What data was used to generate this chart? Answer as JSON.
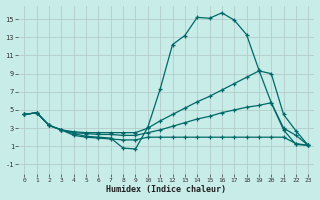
{
  "xlabel": "Humidex (Indice chaleur)",
  "background_color": "#c8ece8",
  "grid_color": "#b0c8c4",
  "line_color": "#006868",
  "xlim": [
    -0.5,
    23.5
  ],
  "ylim": [
    -2.0,
    16.5
  ],
  "xticks": [
    0,
    1,
    2,
    3,
    4,
    5,
    6,
    7,
    8,
    9,
    10,
    11,
    12,
    13,
    14,
    15,
    16,
    17,
    18,
    19,
    20,
    21,
    22,
    23
  ],
  "yticks": [
    -1,
    1,
    3,
    5,
    7,
    9,
    11,
    13,
    15
  ],
  "series1": [
    [
      0,
      4.5
    ],
    [
      1,
      4.7
    ],
    [
      2,
      3.3
    ],
    [
      3,
      2.8
    ],
    [
      4,
      2.4
    ],
    [
      5,
      2.1
    ],
    [
      6,
      2.0
    ],
    [
      7,
      1.9
    ],
    [
      8,
      0.8
    ],
    [
      9,
      0.7
    ],
    [
      10,
      3.1
    ],
    [
      11,
      7.3
    ],
    [
      12,
      12.2
    ],
    [
      13,
      13.2
    ],
    [
      14,
      15.2
    ],
    [
      15,
      15.1
    ],
    [
      16,
      15.7
    ],
    [
      17,
      14.9
    ],
    [
      18,
      13.3
    ],
    [
      19,
      9.4
    ],
    [
      20,
      5.8
    ],
    [
      21,
      2.8
    ],
    [
      22,
      1.2
    ],
    [
      23,
      1.1
    ]
  ],
  "series2": [
    [
      0,
      4.5
    ],
    [
      1,
      4.7
    ],
    [
      2,
      3.3
    ],
    [
      3,
      2.8
    ],
    [
      4,
      2.6
    ],
    [
      5,
      2.5
    ],
    [
      6,
      2.5
    ],
    [
      7,
      2.5
    ],
    [
      8,
      2.5
    ],
    [
      9,
      2.5
    ],
    [
      10,
      3.0
    ],
    [
      11,
      3.8
    ],
    [
      12,
      4.5
    ],
    [
      13,
      5.2
    ],
    [
      14,
      5.9
    ],
    [
      15,
      6.5
    ],
    [
      16,
      7.2
    ],
    [
      17,
      7.9
    ],
    [
      18,
      8.6
    ],
    [
      19,
      9.3
    ],
    [
      20,
      9.0
    ],
    [
      21,
      4.5
    ],
    [
      22,
      2.7
    ],
    [
      23,
      1.1
    ]
  ],
  "series3": [
    [
      0,
      4.5
    ],
    [
      1,
      4.7
    ],
    [
      2,
      3.3
    ],
    [
      3,
      2.8
    ],
    [
      4,
      2.5
    ],
    [
      5,
      2.4
    ],
    [
      6,
      2.3
    ],
    [
      7,
      2.3
    ],
    [
      8,
      2.2
    ],
    [
      9,
      2.2
    ],
    [
      10,
      2.5
    ],
    [
      11,
      2.8
    ],
    [
      12,
      3.2
    ],
    [
      13,
      3.6
    ],
    [
      14,
      4.0
    ],
    [
      15,
      4.3
    ],
    [
      16,
      4.7
    ],
    [
      17,
      5.0
    ],
    [
      18,
      5.3
    ],
    [
      19,
      5.5
    ],
    [
      20,
      5.8
    ],
    [
      21,
      3.0
    ],
    [
      22,
      2.2
    ],
    [
      23,
      1.1
    ]
  ],
  "series4": [
    [
      0,
      4.5
    ],
    [
      1,
      4.7
    ],
    [
      2,
      3.3
    ],
    [
      3,
      2.8
    ],
    [
      4,
      2.2
    ],
    [
      5,
      2.0
    ],
    [
      6,
      1.9
    ],
    [
      7,
      1.8
    ],
    [
      8,
      1.7
    ],
    [
      9,
      1.7
    ],
    [
      10,
      2.0
    ],
    [
      11,
      2.0
    ],
    [
      12,
      2.0
    ],
    [
      13,
      2.0
    ],
    [
      14,
      2.0
    ],
    [
      15,
      2.0
    ],
    [
      16,
      2.0
    ],
    [
      17,
      2.0
    ],
    [
      18,
      2.0
    ],
    [
      19,
      2.0
    ],
    [
      20,
      2.0
    ],
    [
      21,
      2.0
    ],
    [
      22,
      1.3
    ],
    [
      23,
      1.1
    ]
  ]
}
